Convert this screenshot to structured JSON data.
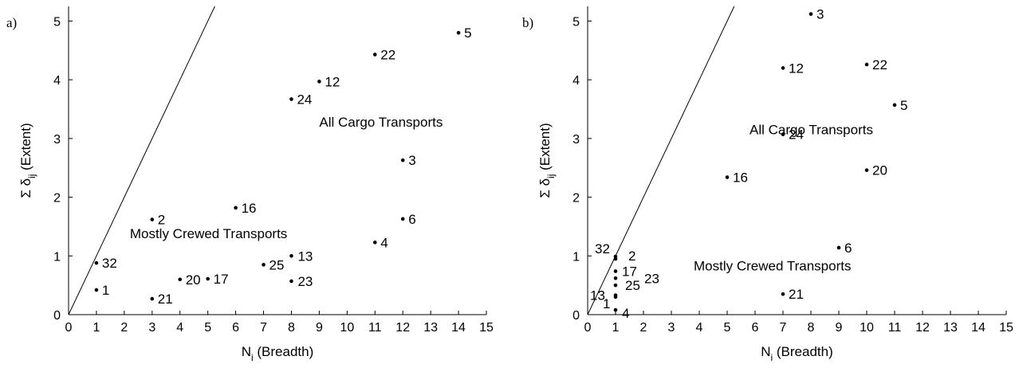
{
  "chart_data": [
    {
      "type": "scatter",
      "panel_label": "a)",
      "xlabel": "N",
      "xlabel_sub": "i",
      "xlabel_rest": " (Breadth)",
      "ylabel": "Σ δ",
      "ylabel_sub": "ij",
      "ylabel_rest": " (Extent)",
      "xlim": [
        0,
        15
      ],
      "ylim": [
        0,
        5.25
      ],
      "xticks": [
        0,
        1,
        2,
        3,
        4,
        5,
        6,
        7,
        8,
        9,
        10,
        11,
        12,
        13,
        14,
        15
      ],
      "yticks": [
        0,
        1,
        2,
        3,
        4,
        5
      ],
      "grid": false,
      "reference_line": {
        "slope": 1
      },
      "points": [
        {
          "label": "5",
          "x": 14,
          "y": 4.8
        },
        {
          "label": "22",
          "x": 11,
          "y": 4.43
        },
        {
          "label": "12",
          "x": 9,
          "y": 3.97
        },
        {
          "label": "24",
          "x": 8,
          "y": 3.67
        },
        {
          "label": "3",
          "x": 12,
          "y": 2.63
        },
        {
          "label": "16",
          "x": 6,
          "y": 1.82
        },
        {
          "label": "2",
          "x": 3,
          "y": 1.62
        },
        {
          "label": "6",
          "x": 12,
          "y": 1.63
        },
        {
          "label": "4",
          "x": 11,
          "y": 1.23
        },
        {
          "label": "32",
          "x": 1,
          "y": 0.88
        },
        {
          "label": "13",
          "x": 8,
          "y": 1.0
        },
        {
          "label": "25",
          "x": 7,
          "y": 0.85
        },
        {
          "label": "20",
          "x": 4,
          "y": 0.6
        },
        {
          "label": "17",
          "x": 5,
          "y": 0.61
        },
        {
          "label": "23",
          "x": 8,
          "y": 0.57
        },
        {
          "label": "1",
          "x": 1,
          "y": 0.42
        },
        {
          "label": "21",
          "x": 3,
          "y": 0.27
        }
      ],
      "annotations": [
        {
          "text": "All Cargo Transports",
          "x": 9.0,
          "y": 3.2
        },
        {
          "text": "Mostly Crewed Transports",
          "x": 2.2,
          "y": 1.3
        }
      ]
    },
    {
      "type": "scatter",
      "panel_label": "b)",
      "xlabel": "N",
      "xlabel_sub": "i",
      "xlabel_rest": " (Breadth)",
      "ylabel": "Σ δ",
      "ylabel_sub": "ij",
      "ylabel_rest": " (Extent)",
      "xlim": [
        0,
        15
      ],
      "ylim": [
        0,
        5.25
      ],
      "xticks": [
        0,
        1,
        2,
        3,
        4,
        5,
        6,
        7,
        8,
        9,
        10,
        11,
        12,
        13,
        14,
        15
      ],
      "yticks": [
        0,
        1,
        2,
        3,
        4,
        5
      ],
      "grid": false,
      "reference_line": {
        "slope": 1
      },
      "points": [
        {
          "label": "3",
          "x": 8,
          "y": 5.12
        },
        {
          "label": "22",
          "x": 10,
          "y": 4.26
        },
        {
          "label": "12",
          "x": 7,
          "y": 4.2
        },
        {
          "label": "5",
          "x": 11,
          "y": 3.57
        },
        {
          "label": "24",
          "x": 7,
          "y": 3.07
        },
        {
          "label": "20",
          "x": 10,
          "y": 2.46
        },
        {
          "label": "16",
          "x": 5,
          "y": 2.34
        },
        {
          "label": "6",
          "x": 9,
          "y": 1.14
        },
        {
          "label": "21",
          "x": 7,
          "y": 0.35
        },
        {
          "label": "32",
          "x": 1,
          "y": 0.99
        },
        {
          "label": "2",
          "x": 1,
          "y": 0.95
        },
        {
          "label": "17",
          "x": 1,
          "y": 0.74
        },
        {
          "label": "23",
          "x": 1,
          "y": 0.62
        },
        {
          "label": "25",
          "x": 1,
          "y": 0.5
        },
        {
          "label": "13",
          "x": 1,
          "y": 0.33
        },
        {
          "label": "1",
          "x": 1,
          "y": 0.3
        },
        {
          "label": "4",
          "x": 1,
          "y": 0.08
        }
      ],
      "annotations": [
        {
          "text": "All Cargo Transports",
          "x": 5.8,
          "y": 3.07
        },
        {
          "text": "Mostly Crewed Transports",
          "x": 3.8,
          "y": 0.75
        }
      ]
    }
  ]
}
